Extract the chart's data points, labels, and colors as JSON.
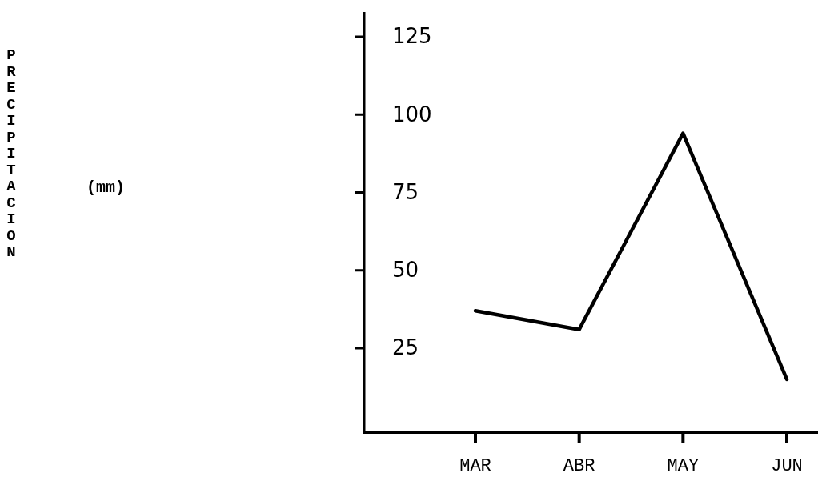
{
  "chart_data": {
    "type": "line",
    "annotations": [
      "PRECIPITACION",
      "(mm)"
    ],
    "categories": [
      "MAR",
      "ABR",
      "MAY",
      "JUN"
    ],
    "series": [
      {
        "color": "#000000",
        "values": [
          37,
          31,
          94,
          15
        ]
      }
    ],
    "ylim": [
      -2,
      133
    ],
    "yticks": [
      25,
      50,
      75,
      100,
      125
    ],
    "grid": false,
    "marker": "none",
    "line_style": "solid"
  }
}
